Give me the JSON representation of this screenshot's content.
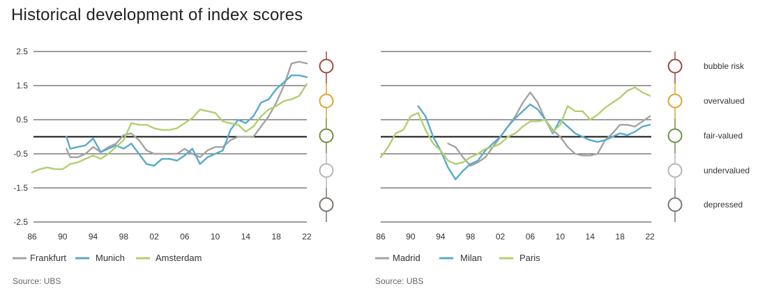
{
  "title": "Historical development of index scores",
  "source_left": "Source: UBS",
  "source_right": "Source: UBS",
  "levels": [
    {
      "label": "bubble risk",
      "color": "#9b4a44"
    },
    {
      "label": "overvalued",
      "color": "#d9a431"
    },
    {
      "label": "fair-valued",
      "color": "#6e8f45"
    },
    {
      "label": "undervalued",
      "color": "#b5b5b5"
    },
    {
      "label": "depressed",
      "color": "#7c7470"
    }
  ],
  "chart_data": [
    {
      "type": "line",
      "ylim": [
        -2.5,
        2.5
      ],
      "yticks": [
        "2.5",
        "1.5",
        "0.5",
        "-0.5",
        "-1.5",
        "-2.5"
      ],
      "yticks_values": [
        2.5,
        1.5,
        0.5,
        -0.5,
        -1.5,
        -2.5
      ],
      "xlim": [
        1986,
        2022
      ],
      "xticks": [
        "86",
        "90",
        "94",
        "98",
        "02",
        "06",
        "10",
        "14",
        "18",
        "22"
      ],
      "xticks_values": [
        1986,
        1990,
        1994,
        1998,
        2002,
        2006,
        2010,
        2014,
        2018,
        2022
      ],
      "series": [
        {
          "name": "Frankfurt",
          "color": "#a3a3a3",
          "x": [
            1990.5,
            1991,
            1992,
            1993,
            1994,
            1995,
            1996,
            1997,
            1998,
            1999,
            2000,
            2001,
            2002,
            2003,
            2004,
            2005,
            2006,
            2007,
            2008,
            2009,
            2010,
            2011,
            2012,
            2013,
            2014,
            2015,
            2016,
            2017,
            2018,
            2019,
            2020,
            2021,
            2022
          ],
          "y": [
            -0.35,
            -0.6,
            -0.6,
            -0.5,
            -0.3,
            -0.45,
            -0.3,
            -0.2,
            0.05,
            0.1,
            -0.1,
            -0.4,
            -0.5,
            -0.5,
            -0.5,
            -0.5,
            -0.35,
            -0.5,
            -0.6,
            -0.4,
            -0.3,
            -0.3,
            -0.1,
            0.0,
            0.0,
            0.0,
            0.3,
            0.6,
            1.0,
            1.5,
            2.15,
            2.2,
            2.15
          ]
        },
        {
          "name": "Munich",
          "color": "#5aa9cb",
          "x": [
            1990.5,
            1991,
            1992,
            1993,
            1994,
            1995,
            1996,
            1997,
            1998,
            1999,
            2000,
            2001,
            2002,
            2003,
            2004,
            2005,
            2006,
            2007,
            2008,
            2009,
            2010,
            2011,
            2012,
            2013,
            2014,
            2015,
            2016,
            2017,
            2018,
            2019,
            2020,
            2021,
            2022
          ],
          "y": [
            0.0,
            -0.35,
            -0.3,
            -0.25,
            -0.05,
            -0.45,
            -0.35,
            -0.25,
            -0.35,
            -0.2,
            -0.5,
            -0.8,
            -0.85,
            -0.65,
            -0.65,
            -0.7,
            -0.55,
            -0.35,
            -0.8,
            -0.6,
            -0.5,
            -0.4,
            0.2,
            0.5,
            0.4,
            0.6,
            1.0,
            1.1,
            1.4,
            1.6,
            1.8,
            1.8,
            1.75
          ]
        },
        {
          "name": "Amsterdam",
          "color": "#b2cf6e",
          "x": [
            1986,
            1987,
            1988,
            1989,
            1990,
            1991,
            1992,
            1993,
            1994,
            1995,
            1996,
            1997,
            1998,
            1999,
            2000,
            2001,
            2002,
            2003,
            2004,
            2005,
            2006,
            2007,
            2008,
            2009,
            2010,
            2011,
            2012,
            2013,
            2014,
            2015,
            2016,
            2017,
            2018,
            2019,
            2020,
            2021,
            2022
          ],
          "y": [
            -1.05,
            -0.95,
            -0.9,
            -0.95,
            -0.95,
            -0.8,
            -0.75,
            -0.65,
            -0.55,
            -0.65,
            -0.5,
            -0.3,
            -0.1,
            0.4,
            0.35,
            0.35,
            0.25,
            0.2,
            0.2,
            0.25,
            0.4,
            0.55,
            0.8,
            0.75,
            0.7,
            0.45,
            0.4,
            0.35,
            0.15,
            0.3,
            0.6,
            0.8,
            0.9,
            1.05,
            1.1,
            1.2,
            1.55
          ]
        }
      ]
    },
    {
      "type": "line",
      "ylim": [
        -2.5,
        2.5
      ],
      "xlim": [
        1986,
        2022
      ],
      "xticks": [
        "86",
        "90",
        "94",
        "98",
        "02",
        "06",
        "10",
        "14",
        "18",
        "22"
      ],
      "xticks_values": [
        1986,
        1990,
        1994,
        1998,
        2002,
        2006,
        2010,
        2014,
        2018,
        2022
      ],
      "series": [
        {
          "name": "Madrid",
          "color": "#a3a3a3",
          "x": [
            1995,
            1996,
            1997,
            1998,
            1999,
            2000,
            2001,
            2002,
            2003,
            2004,
            2005,
            2006,
            2007,
            2008,
            2009,
            2010,
            2011,
            2012,
            2013,
            2014,
            2015,
            2016,
            2017,
            2018,
            2019,
            2020,
            2021,
            2022
          ],
          "y": [
            -0.2,
            -0.3,
            -0.6,
            -0.85,
            -0.75,
            -0.6,
            -0.3,
            0.0,
            0.3,
            0.6,
            1.0,
            1.3,
            1.0,
            0.5,
            0.2,
            0.0,
            -0.3,
            -0.5,
            -0.55,
            -0.55,
            -0.5,
            -0.1,
            0.1,
            0.35,
            0.35,
            0.3,
            0.45,
            0.6
          ]
        },
        {
          "name": "Milan",
          "color": "#5aa9cb",
          "x": [
            1991,
            1992,
            1993,
            1994,
            1995,
            1996,
            1997,
            1998,
            1999,
            2000,
            2001,
            2002,
            2003,
            2004,
            2005,
            2006,
            2007,
            2008,
            2009,
            2010,
            2011,
            2012,
            2013,
            2014,
            2015,
            2016,
            2017,
            2018,
            2019,
            2020,
            2021,
            2022
          ],
          "y": [
            0.9,
            0.6,
            0.0,
            -0.4,
            -0.9,
            -1.25,
            -1.0,
            -0.8,
            -0.7,
            -0.4,
            -0.2,
            0.0,
            0.3,
            0.55,
            0.75,
            0.95,
            0.8,
            0.5,
            0.1,
            0.5,
            0.3,
            0.1,
            0.0,
            -0.1,
            -0.15,
            -0.1,
            0.0,
            0.1,
            0.05,
            0.15,
            0.3,
            0.35
          ]
        },
        {
          "name": "Paris",
          "color": "#b2cf6e",
          "x": [
            1986,
            1987,
            1988,
            1989,
            1990,
            1991,
            1992,
            1993,
            1994,
            1995,
            1996,
            1997,
            1998,
            1999,
            2000,
            2001,
            2002,
            2003,
            2004,
            2005,
            2006,
            2007,
            2008,
            2009,
            2010,
            2011,
            2012,
            2013,
            2014,
            2015,
            2016,
            2017,
            2018,
            2019,
            2020,
            2021,
            2022
          ],
          "y": [
            -0.6,
            -0.3,
            0.1,
            0.2,
            0.6,
            0.7,
            0.2,
            -0.2,
            -0.4,
            -0.7,
            -0.8,
            -0.75,
            -0.6,
            -0.5,
            -0.35,
            -0.3,
            -0.2,
            0.0,
            0.1,
            0.3,
            0.45,
            0.45,
            0.5,
            0.15,
            0.35,
            0.9,
            0.75,
            0.75,
            0.5,
            0.65,
            0.85,
            1.0,
            1.15,
            1.35,
            1.45,
            1.3,
            1.2
          ]
        }
      ]
    }
  ]
}
